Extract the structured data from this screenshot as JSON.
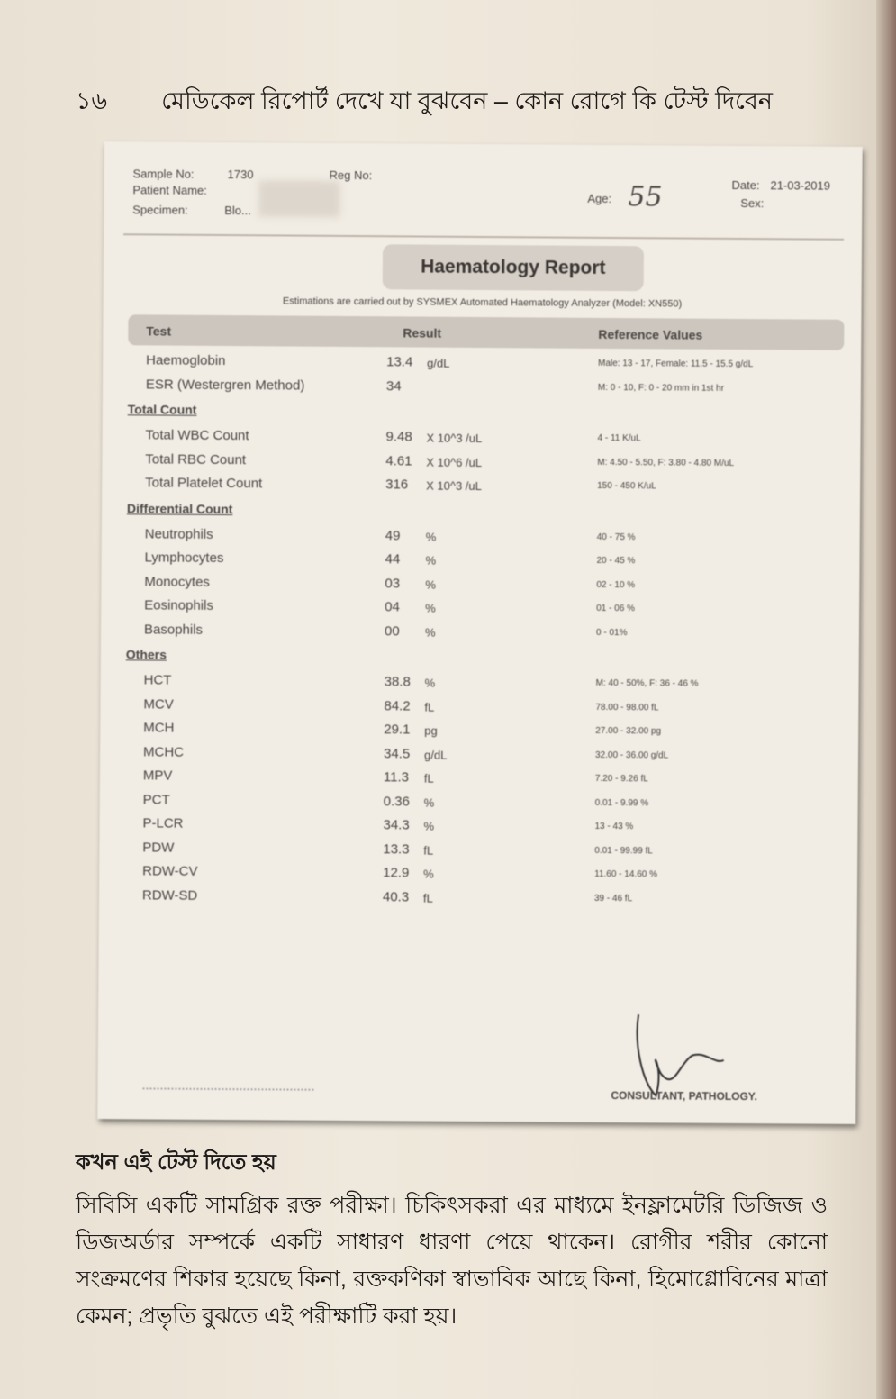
{
  "page_header": {
    "page_number": "১৬",
    "title": "মেডিকেল রিপোর্ট দেখে যা বুঝবেন – কোন রোগে কি টেস্ট দিবেন"
  },
  "report": {
    "sample_no_label": "Sample No:",
    "sample_no": "1730",
    "reg_no_label": "Reg No:",
    "patient_name_label": "Patient Name:",
    "specimen_label": "Specimen:",
    "specimen": "Blo...",
    "age_label": "Age:",
    "age": "55",
    "date_label": "Date:",
    "date": "21-03-2019",
    "sex_label": "Sex:",
    "title": "Haematology Report",
    "subtitle": "Estimations are carried out by SYSMEX Automated Haematology Analyzer (Model: XN550)",
    "columns": [
      "Test",
      "Result",
      "Reference Values"
    ],
    "sections": [
      {
        "name": "",
        "rows": [
          {
            "test": "Haemoglobin",
            "result": "13.4",
            "unit": "g/dL",
            "ref": "Male: 13 - 17, Female: 11.5 - 15.5 g/dL"
          },
          {
            "test": "ESR (Westergren Method)",
            "result": "34",
            "unit": "",
            "ref": "M: 0 - 10, F: 0 - 20 mm in 1st hr"
          }
        ]
      },
      {
        "name": "Total Count",
        "rows": [
          {
            "test": "Total WBC Count",
            "result": "9.48",
            "unit": "X 10^3 /uL",
            "ref": "4 - 11 K/uL"
          },
          {
            "test": "Total RBC Count",
            "result": "4.61",
            "unit": "X 10^6 /uL",
            "ref": "M: 4.50 - 5.50, F: 3.80 - 4.80 M/uL"
          },
          {
            "test": "Total Platelet Count",
            "result": "316",
            "unit": "X 10^3 /uL",
            "ref": "150 - 450 K/uL"
          }
        ]
      },
      {
        "name": "Differential Count",
        "rows": [
          {
            "test": "Neutrophils",
            "result": "49",
            "unit": "%",
            "ref": "40 - 75 %"
          },
          {
            "test": "Lymphocytes",
            "result": "44",
            "unit": "%",
            "ref": "20 - 45 %"
          },
          {
            "test": "Monocytes",
            "result": "03",
            "unit": "%",
            "ref": "02 - 10 %"
          },
          {
            "test": "Eosinophils",
            "result": "04",
            "unit": "%",
            "ref": "01 - 06 %"
          },
          {
            "test": "Basophils",
            "result": "00",
            "unit": "%",
            "ref": "0 - 01%"
          }
        ]
      },
      {
        "name": "Others",
        "rows": [
          {
            "test": "HCT",
            "result": "38.8",
            "unit": "%",
            "ref": "M: 40 - 50%, F: 36 - 46 %"
          },
          {
            "test": "MCV",
            "result": "84.2",
            "unit": "fL",
            "ref": "78.00 - 98.00 fL"
          },
          {
            "test": "MCH",
            "result": "29.1",
            "unit": "pg",
            "ref": "27.00 - 32.00 pg"
          },
          {
            "test": "MCHC",
            "result": "34.5",
            "unit": "g/dL",
            "ref": "32.00 - 36.00 g/dL"
          },
          {
            "test": "MPV",
            "result": "11.3",
            "unit": "fL",
            "ref": "7.20 - 9.26 fL"
          },
          {
            "test": "PCT",
            "result": "0.36",
            "unit": "%",
            "ref": "0.01 - 9.99 %"
          },
          {
            "test": "P-LCR",
            "result": "34.3",
            "unit": "%",
            "ref": "13 - 43 %"
          },
          {
            "test": "PDW",
            "result": "13.3",
            "unit": "fL",
            "ref": "0.01 - 99.99 fL"
          },
          {
            "test": "RDW-CV",
            "result": "12.9",
            "unit": "%",
            "ref": "11.60 - 14.60 %"
          },
          {
            "test": "RDW-SD",
            "result": "40.3",
            "unit": "fL",
            "ref": "39 - 46 fL"
          }
        ]
      }
    ],
    "signatory": "CONSULTANT, PATHOLOGY."
  },
  "bottom": {
    "heading": "কখন এই টেস্ট দিতে হয়",
    "paragraph": "সিবিসি একটি সামগ্রিক রক্ত পরীক্ষা। চিকিৎসকরা এর মাধ্যমে ইনফ্লামেটরি ডিজিজ ও ডিজঅর্ডার সম্পর্কে একটি সাধারণ ধারণা পেয়ে থাকেন। রোগীর শরীর কোনো সংক্রমণের শিকার হয়েছে কিনা, রক্তকণিকা স্বাভাবিক আছে কিনা, হিমোগ্লোবিনের মাত্রা কেমন; প্রভৃতি বুঝতে এই পরীক্ষাটি করা হয়।"
  }
}
